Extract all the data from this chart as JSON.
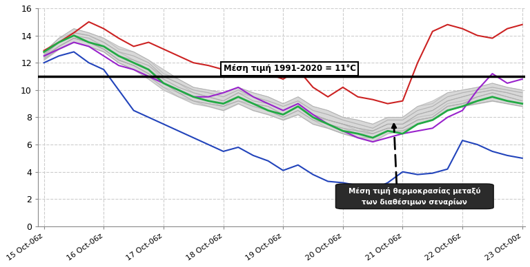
{
  "x_labels": [
    "15 Oct-06z",
    "16 Oct-06z",
    "17 Oct-06z",
    "18 Oct-06z",
    "19 Oct-06z",
    "20 Oct-06z",
    "21 Oct-06z",
    "22 Oct-06z",
    "23 Oct-00z"
  ],
  "n_ticks": 9,
  "ylim": [
    0,
    16
  ],
  "yticks": [
    0,
    2,
    4,
    6,
    8,
    10,
    12,
    14,
    16
  ],
  "mean_line_y": 11,
  "mean_label": "Μέση τιμή 1991-2020 = 11°C",
  "annotation_text": "Μέση τιμή θερμοκρασίας μεταξύ\nτων διαθέσιμων σεναρίων",
  "background_color": "#ffffff",
  "grid_color": "#cccccc",
  "red_line_x": [
    0,
    0.25,
    0.5,
    0.75,
    1.0,
    1.25,
    1.5,
    1.75,
    2.0,
    2.25,
    2.5,
    2.75,
    3.0,
    3.25,
    3.5,
    3.75,
    4.0,
    4.25,
    4.5,
    4.75,
    5.0,
    5.25,
    5.5,
    5.75,
    6.0,
    6.25,
    6.5,
    6.75,
    7.0,
    7.25,
    7.5,
    7.75,
    8.0
  ],
  "red_line_y": [
    12.9,
    13.5,
    14.2,
    15.0,
    14.5,
    13.8,
    13.2,
    13.5,
    13.0,
    12.5,
    12.0,
    11.8,
    11.5,
    12.0,
    11.8,
    11.2,
    10.8,
    11.5,
    10.2,
    9.5,
    10.2,
    9.5,
    9.3,
    9.0,
    9.2,
    12.0,
    14.3,
    14.8,
    14.5,
    14.0,
    13.8,
    14.5,
    14.8
  ],
  "blue_line_x": [
    0,
    0.25,
    0.5,
    0.75,
    1.0,
    1.25,
    1.5,
    1.75,
    2.0,
    2.25,
    2.5,
    2.75,
    3.0,
    3.25,
    3.5,
    3.75,
    4.0,
    4.25,
    4.5,
    4.75,
    5.0,
    5.25,
    5.5,
    5.75,
    6.0,
    6.25,
    6.5,
    6.75,
    7.0,
    7.25,
    7.5,
    7.75,
    8.0
  ],
  "blue_line_y": [
    12.0,
    12.5,
    12.8,
    12.0,
    11.5,
    10.0,
    8.5,
    8.0,
    7.5,
    7.0,
    6.5,
    6.0,
    5.5,
    5.8,
    5.2,
    4.8,
    4.1,
    4.5,
    3.8,
    3.3,
    3.2,
    3.0,
    2.7,
    3.2,
    4.0,
    3.8,
    3.9,
    4.2,
    6.3,
    6.0,
    5.5,
    5.2,
    5.0
  ],
  "green_line_x": [
    0,
    0.25,
    0.5,
    0.75,
    1.0,
    1.25,
    1.5,
    1.75,
    2.0,
    2.25,
    2.5,
    2.75,
    3.0,
    3.25,
    3.5,
    3.75,
    4.0,
    4.25,
    4.5,
    4.75,
    5.0,
    5.25,
    5.5,
    5.75,
    6.0,
    6.25,
    6.5,
    6.75,
    7.0,
    7.25,
    7.5,
    7.75,
    8.0
  ],
  "green_line_y": [
    12.8,
    13.5,
    14.0,
    13.5,
    13.2,
    12.5,
    12.0,
    11.5,
    10.5,
    10.0,
    9.5,
    9.2,
    9.0,
    9.5,
    9.0,
    8.5,
    8.2,
    8.8,
    8.0,
    7.5,
    7.0,
    6.8,
    6.5,
    7.0,
    6.8,
    7.5,
    7.8,
    8.5,
    8.8,
    9.2,
    9.5,
    9.2,
    9.0
  ],
  "purple_line_x": [
    0,
    0.25,
    0.5,
    0.75,
    1.0,
    1.25,
    1.5,
    1.75,
    2.0,
    2.25,
    2.5,
    2.75,
    3.0,
    3.25,
    3.5,
    3.75,
    4.0,
    4.25,
    4.5,
    4.75,
    5.0,
    5.25,
    5.5,
    5.75,
    6.0,
    6.25,
    6.5,
    6.75,
    7.0,
    7.25,
    7.5,
    7.75,
    8.0
  ],
  "purple_line_y": [
    12.5,
    13.0,
    13.5,
    13.2,
    12.5,
    11.8,
    11.5,
    11.0,
    10.5,
    10.0,
    9.5,
    9.5,
    9.8,
    10.2,
    9.5,
    9.0,
    8.5,
    9.0,
    8.2,
    7.5,
    7.0,
    6.5,
    6.2,
    6.5,
    6.8,
    7.0,
    7.2,
    8.0,
    8.5,
    10.0,
    11.2,
    10.5,
    10.8
  ],
  "gray_fill_color": "#d8d8d8",
  "gray_line_color": "#aaaaaa",
  "gray_scenarios": [
    [
      12.5,
      13.2,
      13.8,
      13.5,
      13.0,
      12.2,
      11.8,
      11.2,
      10.5,
      10.0,
      9.5,
      9.2,
      9.0,
      9.5,
      9.0,
      8.8,
      8.2,
      8.8,
      8.2,
      7.8,
      7.5,
      7.2,
      7.0,
      7.5,
      7.5,
      8.0,
      8.2,
      9.0,
      9.2,
      9.5,
      9.8,
      9.5,
      9.2
    ],
    [
      12.7,
      13.5,
      14.2,
      14.0,
      13.5,
      12.8,
      12.5,
      12.0,
      11.0,
      10.5,
      10.0,
      9.8,
      9.5,
      10.0,
      9.5,
      9.2,
      8.8,
      9.2,
      8.5,
      8.2,
      7.8,
      7.5,
      7.2,
      7.8,
      7.8,
      8.5,
      8.8,
      9.5,
      9.8,
      10.0,
      10.2,
      10.0,
      9.8
    ],
    [
      12.3,
      13.0,
      13.5,
      13.2,
      12.8,
      12.0,
      11.5,
      11.0,
      10.2,
      9.8,
      9.2,
      9.0,
      8.8,
      9.2,
      8.8,
      8.5,
      8.0,
      8.5,
      7.8,
      7.5,
      7.2,
      7.0,
      6.8,
      7.2,
      7.2,
      7.8,
      8.0,
      8.8,
      9.0,
      9.2,
      9.5,
      9.2,
      9.0
    ],
    [
      12.6,
      13.5,
      14.0,
      13.8,
      13.2,
      12.5,
      12.2,
      11.8,
      10.8,
      10.2,
      9.8,
      9.5,
      9.2,
      9.8,
      9.2,
      9.0,
      8.5,
      9.0,
      8.2,
      7.8,
      7.5,
      7.2,
      7.0,
      7.5,
      7.5,
      8.2,
      8.5,
      9.2,
      9.5,
      9.8,
      10.0,
      9.8,
      9.5
    ],
    [
      12.4,
      13.2,
      13.8,
      13.5,
      13.0,
      12.2,
      11.8,
      11.2,
      10.5,
      9.8,
      9.5,
      9.2,
      9.0,
      9.5,
      9.0,
      8.8,
      8.2,
      8.8,
      8.0,
      7.8,
      7.5,
      7.2,
      6.8,
      7.2,
      7.2,
      7.8,
      8.0,
      8.8,
      9.0,
      9.5,
      9.8,
      9.5,
      9.2
    ],
    [
      12.8,
      13.8,
      14.5,
      14.2,
      13.8,
      13.0,
      12.8,
      12.2,
      11.2,
      10.8,
      10.2,
      10.0,
      9.8,
      10.2,
      9.8,
      9.5,
      9.0,
      9.5,
      8.8,
      8.5,
      8.0,
      7.8,
      7.5,
      8.0,
      8.0,
      8.8,
      9.0,
      9.8,
      10.0,
      10.2,
      10.5,
      10.2,
      10.0
    ],
    [
      12.2,
      13.0,
      13.5,
      13.2,
      12.8,
      12.0,
      11.5,
      11.0,
      10.2,
      9.5,
      9.2,
      8.8,
      8.5,
      9.0,
      8.5,
      8.2,
      7.8,
      8.2,
      7.5,
      7.2,
      6.8,
      6.5,
      6.5,
      7.0,
      7.0,
      7.5,
      7.8,
      8.5,
      8.8,
      9.0,
      9.2,
      9.0,
      8.8
    ],
    [
      12.5,
      13.5,
      14.0,
      13.8,
      13.2,
      12.5,
      12.2,
      11.5,
      10.8,
      10.2,
      9.8,
      9.5,
      9.2,
      9.8,
      9.2,
      9.0,
      8.5,
      9.0,
      8.2,
      7.8,
      7.5,
      7.2,
      7.0,
      7.5,
      7.5,
      8.2,
      8.5,
      9.2,
      9.5,
      9.8,
      10.0,
      9.8,
      9.5
    ],
    [
      12.3,
      13.2,
      13.8,
      13.5,
      13.0,
      12.2,
      11.8,
      11.2,
      10.5,
      9.8,
      9.2,
      9.0,
      8.8,
      9.5,
      9.0,
      8.8,
      8.2,
      8.8,
      8.0,
      7.5,
      7.2,
      6.8,
      6.8,
      7.2,
      7.2,
      7.8,
      8.0,
      8.8,
      9.0,
      9.2,
      9.5,
      9.2,
      9.0
    ],
    [
      12.6,
      13.5,
      14.2,
      14.0,
      13.5,
      12.8,
      12.2,
      11.8,
      11.0,
      10.5,
      9.8,
      9.5,
      9.2,
      9.8,
      9.5,
      9.0,
      8.5,
      9.0,
      8.2,
      7.8,
      7.5,
      7.0,
      7.0,
      7.5,
      7.5,
      8.2,
      8.5,
      9.2,
      9.5,
      9.8,
      10.0,
      9.8,
      9.5
    ],
    [
      12.4,
      13.2,
      13.8,
      13.5,
      13.0,
      12.2,
      11.8,
      11.2,
      10.5,
      9.8,
      9.2,
      9.0,
      8.8,
      9.2,
      8.8,
      8.5,
      8.0,
      8.5,
      7.8,
      7.2,
      6.8,
      6.5,
      6.5,
      7.0,
      7.0,
      7.5,
      7.8,
      8.5,
      8.8,
      9.0,
      9.2,
      9.0,
      8.8
    ],
    [
      12.7,
      13.8,
      14.2,
      14.0,
      13.5,
      12.8,
      12.5,
      12.0,
      11.0,
      10.5,
      10.0,
      9.8,
      9.5,
      10.0,
      9.5,
      9.2,
      8.8,
      9.2,
      8.5,
      8.2,
      7.8,
      7.5,
      7.2,
      7.8,
      7.8,
      8.5,
      8.8,
      9.5,
      9.8,
      10.0,
      10.2,
      10.0,
      9.8
    ],
    [
      12.5,
      13.2,
      13.8,
      13.5,
      13.0,
      12.2,
      11.8,
      11.2,
      10.5,
      10.0,
      9.5,
      9.2,
      8.8,
      9.2,
      9.0,
      8.5,
      8.0,
      8.5,
      7.8,
      7.5,
      7.2,
      7.0,
      6.8,
      7.2,
      7.2,
      7.8,
      8.0,
      8.8,
      9.0,
      9.5,
      9.8,
      9.5,
      9.2
    ],
    [
      12.8,
      13.8,
      14.5,
      14.2,
      13.8,
      13.2,
      12.8,
      12.2,
      11.5,
      10.8,
      10.2,
      10.0,
      9.8,
      10.2,
      9.8,
      9.5,
      9.0,
      9.5,
      8.8,
      8.5,
      8.0,
      7.8,
      7.5,
      8.0,
      8.0,
      8.8,
      9.2,
      9.8,
      10.0,
      10.2,
      10.5,
      10.2,
      10.0
    ],
    [
      12.2,
      13.0,
      13.5,
      13.2,
      12.8,
      12.0,
      11.5,
      10.8,
      10.0,
      9.5,
      9.0,
      8.8,
      8.5,
      9.0,
      8.5,
      8.2,
      7.8,
      8.2,
      7.5,
      7.2,
      6.8,
      6.5,
      6.2,
      6.8,
      7.0,
      7.5,
      7.8,
      8.5,
      8.8,
      9.0,
      9.2,
      9.0,
      8.8
    ]
  ]
}
